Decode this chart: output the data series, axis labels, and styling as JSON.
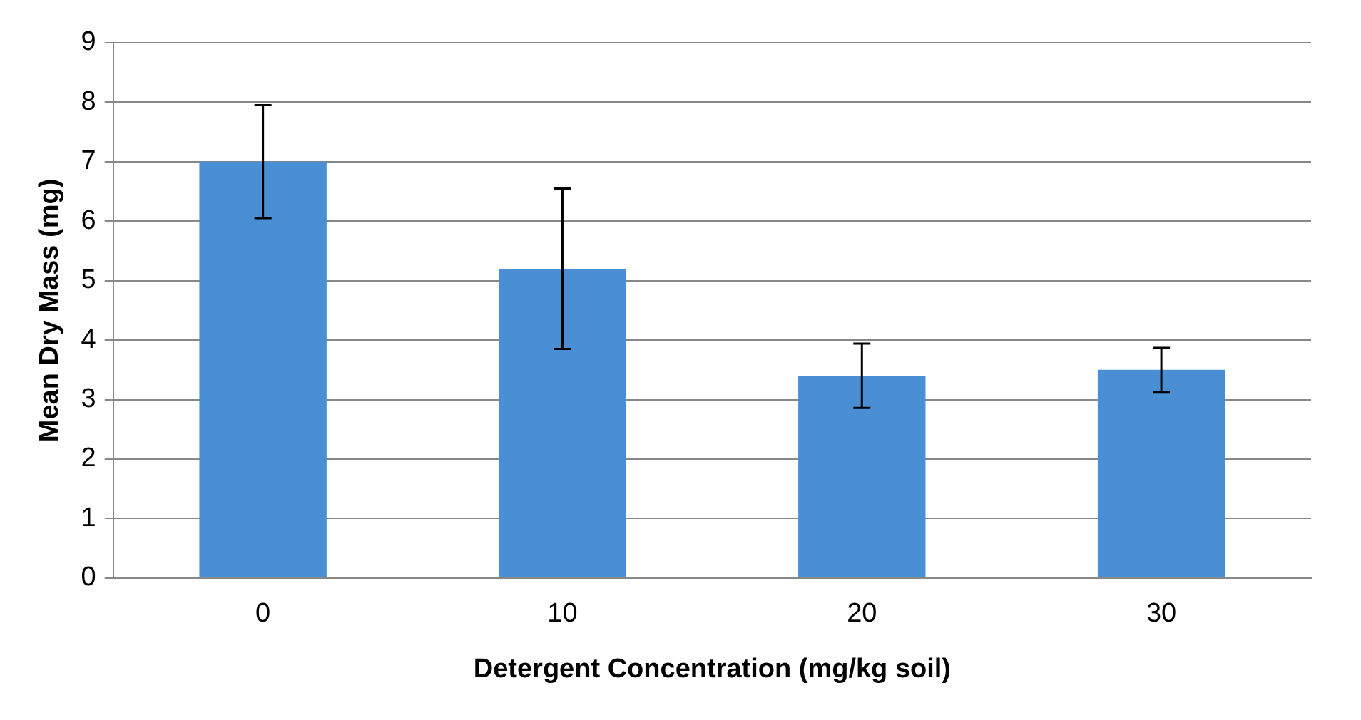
{
  "chart_data": {
    "type": "bar",
    "xlabel": "Detergent Concentration (mg/kg soil)",
    "ylabel": "Mean Dry Mass (mg)",
    "categories": [
      "0",
      "10",
      "20",
      "30"
    ],
    "values": [
      7.0,
      5.2,
      3.4,
      3.5
    ],
    "errors": [
      0.95,
      1.35,
      0.54,
      0.37
    ],
    "color": "#4a8ed4",
    "ylim": [
      0,
      9
    ],
    "yticks": [
      0,
      1,
      2,
      3,
      4,
      5,
      6,
      7,
      8,
      9
    ],
    "grid": "y",
    "legend": false
  }
}
